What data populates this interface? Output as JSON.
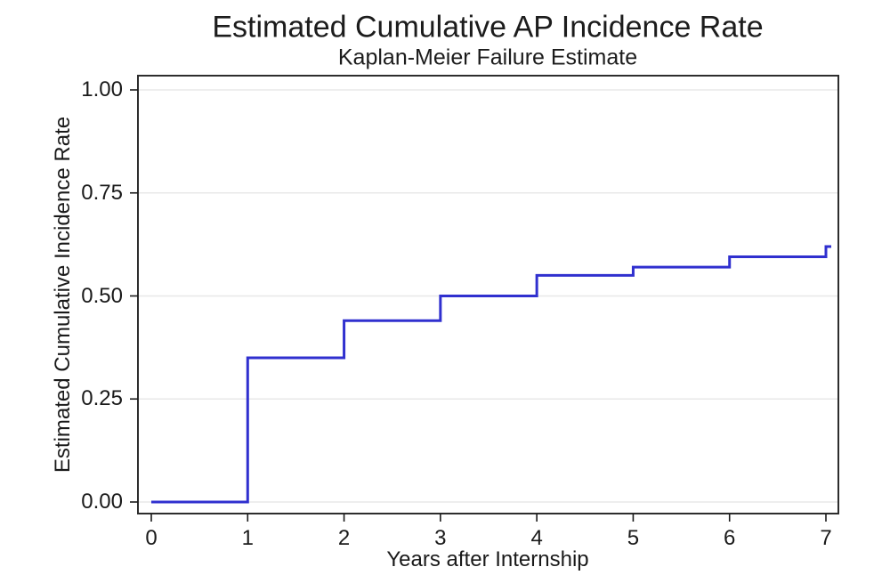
{
  "chart_data": {
    "type": "line",
    "subtype": "step-kaplan-meier-failure",
    "title": "Estimated Cumulative AP Incidence Rate",
    "subtitle": "Kaplan-Meier Failure Estimate",
    "xlabel": "Years after Internship",
    "ylabel": "Estimated Cumulative Incidence Rate",
    "x": [
      0,
      1,
      2,
      3,
      4,
      5,
      6,
      7
    ],
    "y": [
      0.0,
      0.35,
      0.44,
      0.5,
      0.55,
      0.57,
      0.595,
      0.62
    ],
    "x_ticks": [
      {
        "v": 0,
        "label": "0"
      },
      {
        "v": 1,
        "label": "1"
      },
      {
        "v": 2,
        "label": "2"
      },
      {
        "v": 3,
        "label": "3"
      },
      {
        "v": 4,
        "label": "4"
      },
      {
        "v": 5,
        "label": "5"
      },
      {
        "v": 6,
        "label": "6"
      },
      {
        "v": 7,
        "label": "7"
      }
    ],
    "y_ticks": [
      {
        "v": 0.0,
        "label": "0.00"
      },
      {
        "v": 0.25,
        "label": "0.25"
      },
      {
        "v": 0.5,
        "label": "0.50"
      },
      {
        "v": 0.75,
        "label": "0.75"
      },
      {
        "v": 1.0,
        "label": "1.00"
      }
    ],
    "xlim": [
      -0.14,
      7.13
    ],
    "ylim": [
      -0.03,
      1.035
    ],
    "grid": "horizontal-only",
    "legend": "none",
    "colors": {
      "line": "#3030cf",
      "grid": "#e8e8e8",
      "border": "#2d2d2d",
      "tick": "#1a1a1a",
      "text": "#1c1c1c",
      "background": "#ffffff"
    }
  }
}
